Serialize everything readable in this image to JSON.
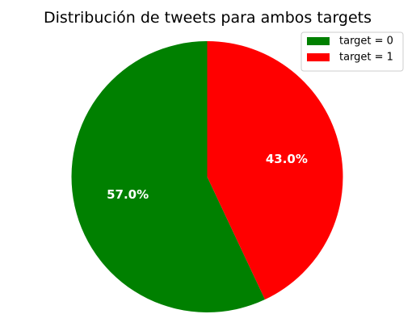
{
  "chart_data": {
    "type": "pie",
    "title": "Distribución de tweets para ambos targets",
    "labels": [
      "target = 0",
      "target = 1"
    ],
    "values": [
      57.0,
      43.0
    ],
    "value_labels": [
      "57.0%",
      "43.0%"
    ],
    "colors": [
      "#008000",
      "#ff0000"
    ],
    "start_angle_deg": 90,
    "direction": "counterclockwise",
    "legend_placement": "top-right"
  }
}
